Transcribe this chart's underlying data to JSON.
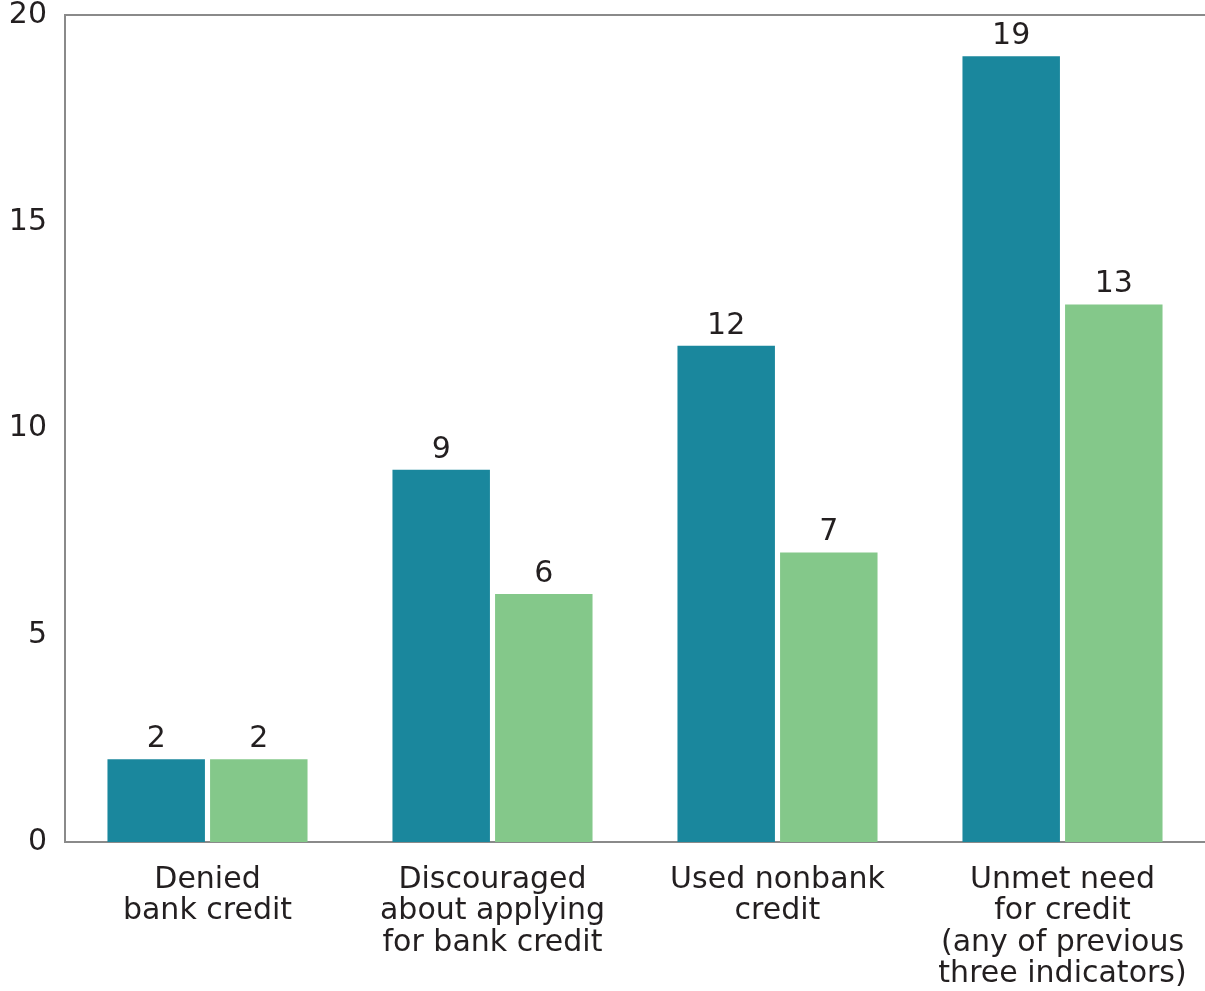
{
  "chart_data": {
    "type": "bar",
    "categories": [
      "Denied\nbank credit",
      "Discouraged\nabout applying\nfor bank credit",
      "Used nonbank\ncredit",
      "Unmet need\nfor credit\n(any of previous\nthree indicators)"
    ],
    "series": [
      {
        "color": "#1a879d",
        "values": [
          2,
          9,
          12,
          19
        ]
      },
      {
        "color": "#84c88a",
        "values": [
          2,
          6,
          7,
          13
        ]
      }
    ],
    "ylim": [
      0,
      20
    ],
    "yticks": [
      0,
      5,
      10,
      15,
      20
    ],
    "data_labels": true
  }
}
